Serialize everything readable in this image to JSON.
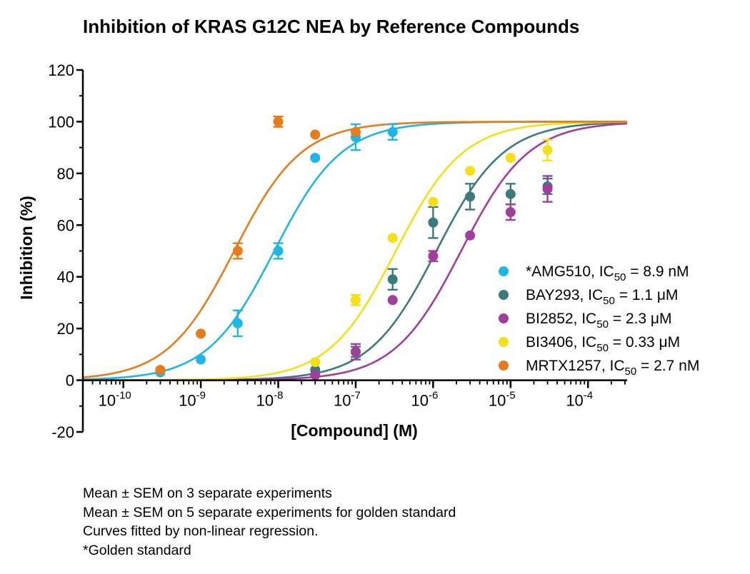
{
  "chart_data": {
    "type": "scatter",
    "title": "Inhibition of KRAS G12C NEA by Reference Compounds",
    "xlabel": "[Compound] (M)",
    "ylabel": "Inhibition (%)",
    "x_scale": "log",
    "xlim": [
      3e-11,
      0.00032
    ],
    "ylim": [
      -20,
      120
    ],
    "x_ticks": [
      {
        "base": "10",
        "exp": "-10",
        "value": 1e-10
      },
      {
        "base": "10",
        "exp": "-9",
        "value": 1e-09
      },
      {
        "base": "10",
        "exp": "-8",
        "value": 1e-08
      },
      {
        "base": "10",
        "exp": "-7",
        "value": 1e-07
      },
      {
        "base": "10",
        "exp": "-6",
        "value": 1e-06
      },
      {
        "base": "10",
        "exp": "-5",
        "value": 1e-05
      },
      {
        "base": "10",
        "exp": "-4",
        "value": 0.0001
      }
    ],
    "y_ticks": [
      "120",
      "100",
      "80",
      "60",
      "40",
      "20",
      "0",
      "-20"
    ],
    "y_tick_values": [
      120,
      100,
      80,
      60,
      40,
      20,
      0,
      -20
    ],
    "grid": false,
    "legend_position": "right",
    "series": [
      {
        "legend_main": "*AMG510, IC",
        "legend_sub": "50",
        "legend_rest": " = 8.9 nM",
        "color": "#1EB6E4",
        "ic50": 8.9e-09,
        "x": [
          3e-10,
          1e-09,
          3e-09,
          1e-08,
          3e-08,
          1e-07,
          3e-07
        ],
        "y": [
          3,
          8,
          22,
          50,
          86,
          94,
          96
        ],
        "err": [
          1,
          1,
          5,
          3,
          0.5,
          5,
          3
        ]
      },
      {
        "legend_main": "BAY293, IC",
        "legend_sub": "50",
        "legend_rest": " = 1.1 μM",
        "color": "#3C7B7B",
        "ic50": 1.1e-06,
        "x": [
          3e-08,
          1e-07,
          3e-07,
          1e-06,
          3e-06,
          1e-05,
          3e-05
        ],
        "y": [
          4,
          11,
          39,
          61,
          71,
          72,
          75
        ],
        "err": [
          1,
          2,
          4,
          6,
          5,
          4,
          3
        ]
      },
      {
        "legend_main": "BI2852, IC",
        "legend_sub": "50",
        "legend_rest": " = 2.3 μM",
        "color": "#A23D9C",
        "ic50": 2.3e-06,
        "x": [
          3e-08,
          1e-07,
          3e-07,
          1e-06,
          3e-06,
          1e-05,
          3e-05
        ],
        "y": [
          2,
          11,
          31,
          48,
          56,
          65,
          74
        ],
        "err": [
          1,
          3,
          1,
          2,
          1,
          3,
          5
        ]
      },
      {
        "legend_main": "BI3406, IC",
        "legend_sub": "50",
        "legend_rest": " = 0.33 μM",
        "color": "#F5DF17",
        "ic50": 3.3e-07,
        "x": [
          3e-08,
          1e-07,
          3e-07,
          1e-06,
          3e-06,
          1e-05,
          3e-05
        ],
        "y": [
          7,
          31,
          55,
          69,
          81,
          86,
          89
        ],
        "err": [
          1,
          2,
          1,
          1,
          1,
          1,
          4
        ]
      },
      {
        "legend_main": "MRTX1257, IC",
        "legend_sub": "50",
        "legend_rest": " = 2.7 nM",
        "color": "#E67C1A",
        "ic50": 2.7e-09,
        "x": [
          3e-10,
          1e-09,
          3e-09,
          1e-08,
          3e-08,
          1e-07
        ],
        "y": [
          4,
          18,
          50,
          100,
          95,
          96
        ],
        "err": [
          1,
          1,
          3,
          2,
          1,
          1
        ]
      }
    ]
  },
  "notes": [
    "Mean ± SEM on 3 separate experiments",
    "Mean ± SEM on 5 separate experiments for golden standard",
    "Curves fitted by non-linear regression.",
    "*Golden standard"
  ]
}
